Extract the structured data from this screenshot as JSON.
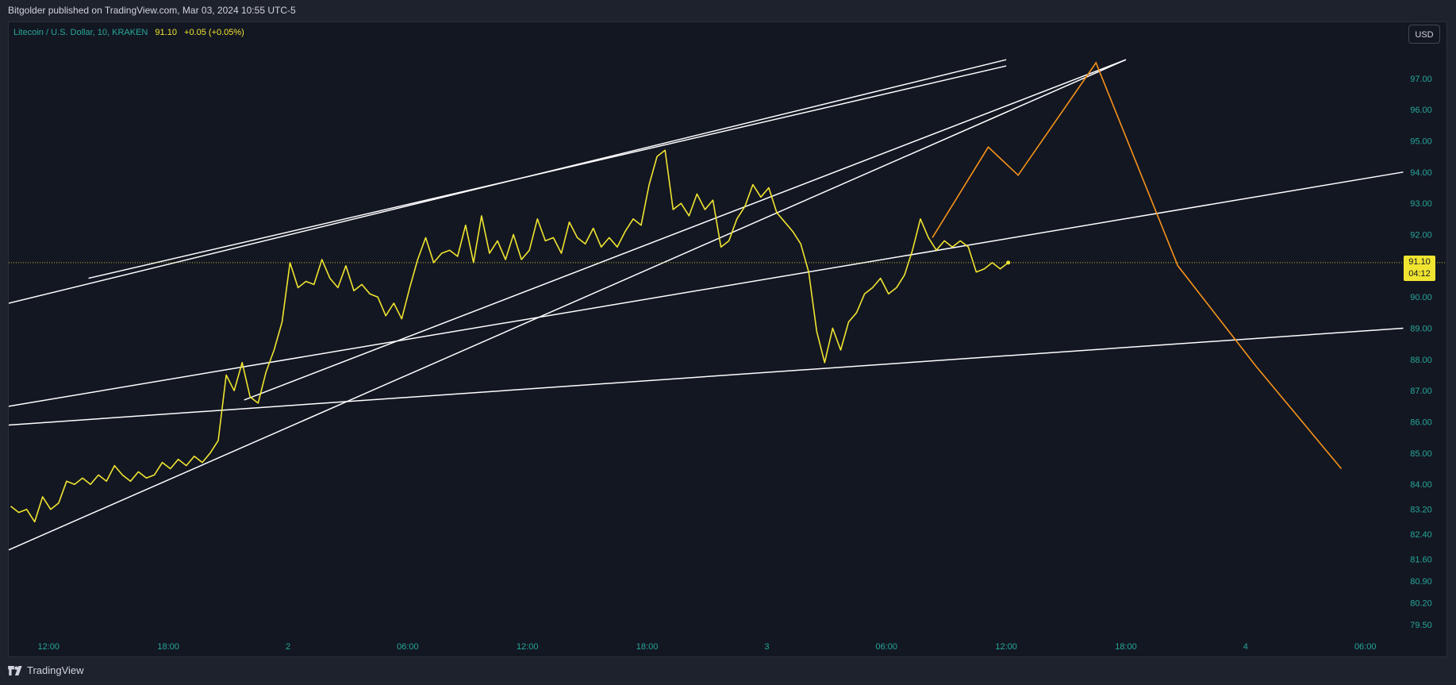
{
  "header": {
    "published_text": "Bitgolder published on TradingView.com, Mar 03, 2024 10:55 UTC-5"
  },
  "legend": {
    "symbol_text": "Litecoin / U.S. Dollar, 10, KRAKEN",
    "price": "91.10",
    "change": "+0.05 (+0.05%)"
  },
  "currency_button": "USD",
  "last_price": {
    "value": "91.10",
    "countdown": "04:12"
  },
  "footer": {
    "brand": "TradingView"
  },
  "colors": {
    "price_line": "#f0e430",
    "projection": "#f7931a",
    "trendlines": "#ffffff",
    "axis_text": "#26a69a",
    "background": "#131722"
  },
  "chart_data": {
    "type": "line",
    "y_ticks": [
      "97.00",
      "96.00",
      "95.00",
      "94.00",
      "93.00",
      "92.00",
      "91.00",
      "90.00",
      "89.00",
      "88.00",
      "87.00",
      "86.00",
      "85.00",
      "84.00",
      "83.20",
      "82.40",
      "81.60",
      "80.90",
      "80.20",
      "79.50"
    ],
    "x_ticks": [
      {
        "label": "12:00",
        "h": 12
      },
      {
        "label": "18:00",
        "h": 18
      },
      {
        "label": "2",
        "h": 24
      },
      {
        "label": "06:00",
        "h": 30
      },
      {
        "label": "12:00",
        "h": 36
      },
      {
        "label": "18:00",
        "h": 42
      },
      {
        "label": "3",
        "h": 48
      },
      {
        "label": "06:00",
        "h": 54
      },
      {
        "label": "12:00",
        "h": 60
      },
      {
        "label": "18:00",
        "h": 66
      },
      {
        "label": "4",
        "h": 72
      },
      {
        "label": "06:00",
        "h": 78
      }
    ],
    "series": [
      {
        "values": [
          [
            10.1,
            83.3
          ],
          [
            10.5,
            83.1
          ],
          [
            10.9,
            83.2
          ],
          [
            11.3,
            82.8
          ],
          [
            11.7,
            83.6
          ],
          [
            12.1,
            83.2
          ],
          [
            12.5,
            83.4
          ],
          [
            12.9,
            84.1
          ],
          [
            13.3,
            84.0
          ],
          [
            13.7,
            84.2
          ],
          [
            14.1,
            84.0
          ],
          [
            14.5,
            84.3
          ],
          [
            14.9,
            84.1
          ],
          [
            15.3,
            84.6
          ],
          [
            15.7,
            84.3
          ],
          [
            16.1,
            84.1
          ],
          [
            16.5,
            84.4
          ],
          [
            16.9,
            84.2
          ],
          [
            17.3,
            84.3
          ],
          [
            17.7,
            84.7
          ],
          [
            18.1,
            84.5
          ],
          [
            18.5,
            84.8
          ],
          [
            18.9,
            84.6
          ],
          [
            19.3,
            84.9
          ],
          [
            19.7,
            84.7
          ],
          [
            20.1,
            85.0
          ],
          [
            20.5,
            85.4
          ],
          [
            20.9,
            87.5
          ],
          [
            21.3,
            87.0
          ],
          [
            21.7,
            87.9
          ],
          [
            22.1,
            86.8
          ],
          [
            22.5,
            86.6
          ],
          [
            22.9,
            87.6
          ],
          [
            23.3,
            88.3
          ],
          [
            23.7,
            89.2
          ],
          [
            24.1,
            91.1
          ],
          [
            24.5,
            90.3
          ],
          [
            24.9,
            90.5
          ],
          [
            25.3,
            90.4
          ],
          [
            25.7,
            91.2
          ],
          [
            26.1,
            90.6
          ],
          [
            26.5,
            90.3
          ],
          [
            26.9,
            91.0
          ],
          [
            27.3,
            90.2
          ],
          [
            27.7,
            90.4
          ],
          [
            28.1,
            90.1
          ],
          [
            28.5,
            90.0
          ],
          [
            28.9,
            89.4
          ],
          [
            29.3,
            89.8
          ],
          [
            29.7,
            89.3
          ],
          [
            30.1,
            90.3
          ],
          [
            30.5,
            91.2
          ],
          [
            30.9,
            91.9
          ],
          [
            31.3,
            91.1
          ],
          [
            31.7,
            91.4
          ],
          [
            32.1,
            91.5
          ],
          [
            32.5,
            91.3
          ],
          [
            32.9,
            92.3
          ],
          [
            33.3,
            91.1
          ],
          [
            33.7,
            92.6
          ],
          [
            34.1,
            91.4
          ],
          [
            34.5,
            91.8
          ],
          [
            34.9,
            91.2
          ],
          [
            35.3,
            92.0
          ],
          [
            35.7,
            91.2
          ],
          [
            36.1,
            91.5
          ],
          [
            36.5,
            92.5
          ],
          [
            36.9,
            91.8
          ],
          [
            37.3,
            91.9
          ],
          [
            37.7,
            91.4
          ],
          [
            38.1,
            92.4
          ],
          [
            38.5,
            91.9
          ],
          [
            38.9,
            91.7
          ],
          [
            39.3,
            92.2
          ],
          [
            39.7,
            91.6
          ],
          [
            40.1,
            91.9
          ],
          [
            40.5,
            91.6
          ],
          [
            40.9,
            92.1
          ],
          [
            41.3,
            92.5
          ],
          [
            41.7,
            92.3
          ],
          [
            42.1,
            93.6
          ],
          [
            42.5,
            94.5
          ],
          [
            42.9,
            94.7
          ],
          [
            43.3,
            92.8
          ],
          [
            43.7,
            93.0
          ],
          [
            44.1,
            92.6
          ],
          [
            44.5,
            93.3
          ],
          [
            44.9,
            92.8
          ],
          [
            45.3,
            93.1
          ],
          [
            45.7,
            91.6
          ],
          [
            46.1,
            91.8
          ],
          [
            46.5,
            92.5
          ],
          [
            46.9,
            92.9
          ],
          [
            47.3,
            93.6
          ],
          [
            47.7,
            93.2
          ],
          [
            48.1,
            93.5
          ],
          [
            48.5,
            92.7
          ],
          [
            48.9,
            92.4
          ],
          [
            49.3,
            92.1
          ],
          [
            49.7,
            91.7
          ],
          [
            50.1,
            90.8
          ],
          [
            50.5,
            88.9
          ],
          [
            50.9,
            87.9
          ],
          [
            51.3,
            89.0
          ],
          [
            51.7,
            88.3
          ],
          [
            52.1,
            89.2
          ],
          [
            52.5,
            89.5
          ],
          [
            52.9,
            90.1
          ],
          [
            53.3,
            90.3
          ],
          [
            53.7,
            90.6
          ],
          [
            54.1,
            90.1
          ],
          [
            54.5,
            90.3
          ],
          [
            54.9,
            90.7
          ],
          [
            55.3,
            91.5
          ],
          [
            55.7,
            92.5
          ],
          [
            56.1,
            91.9
          ],
          [
            56.5,
            91.5
          ],
          [
            56.9,
            91.8
          ],
          [
            57.3,
            91.6
          ],
          [
            57.7,
            91.8
          ],
          [
            58.1,
            91.6
          ],
          [
            58.5,
            90.8
          ],
          [
            58.9,
            90.9
          ],
          [
            59.3,
            91.1
          ],
          [
            59.7,
            90.9
          ],
          [
            60.1,
            91.1
          ]
        ]
      }
    ],
    "projection": [
      [
        56.3,
        91.9
      ],
      [
        59.1,
        94.8
      ],
      [
        60.6,
        93.9
      ],
      [
        64.5,
        97.5
      ],
      [
        68.6,
        91.0
      ],
      [
        72.5,
        87.8
      ],
      [
        76.8,
        84.5
      ]
    ],
    "trendlines": [
      {
        "from": [
          10.0,
          89.8
        ],
        "to": [
          60.0,
          97.6
        ]
      },
      {
        "from": [
          14.0,
          90.6
        ],
        "to": [
          60.0,
          97.4
        ]
      },
      {
        "from": [
          10.0,
          81.9
        ],
        "to": [
          66.0,
          97.6
        ]
      },
      {
        "from": [
          21.8,
          86.7
        ],
        "to": [
          66.0,
          97.6
        ]
      },
      {
        "from": [
          10.0,
          86.5
        ],
        "to": [
          79.9,
          94.0
        ]
      },
      {
        "from": [
          10.0,
          85.9
        ],
        "to": [
          79.9,
          89.0
        ]
      }
    ],
    "ylim": [
      79.2,
      98.8
    ],
    "xlim": [
      10.0,
      80.0
    ]
  }
}
